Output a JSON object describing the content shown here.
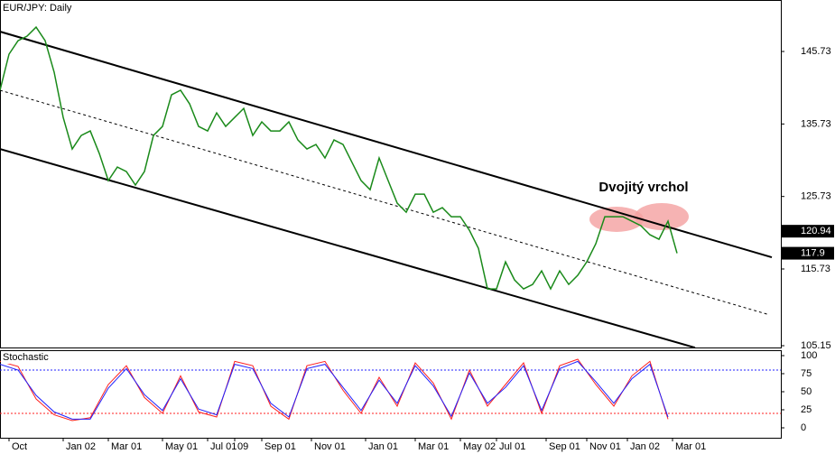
{
  "chart_data": [
    {
      "type": "line",
      "title": "EUR/JPY: Daily",
      "color": "#1a8a1a",
      "x": [
        0,
        2,
        4,
        6,
        8,
        10,
        12,
        14,
        16,
        18,
        20,
        22,
        24,
        26,
        28,
        30,
        32,
        34,
        36,
        38,
        40,
        42,
        44,
        46,
        48,
        50,
        52,
        54,
        56,
        58,
        60,
        62,
        64,
        66,
        68,
        70,
        72,
        74,
        76,
        78,
        80,
        82,
        84,
        86,
        88,
        90,
        92,
        94,
        96,
        98,
        100,
        102,
        104,
        106,
        108,
        110,
        112,
        114,
        116,
        118,
        120,
        122,
        124,
        126,
        128,
        130,
        132,
        134,
        136,
        138,
        140,
        142,
        144,
        146,
        148,
        150
      ],
      "values": [
        140.38,
        145.36,
        147.22,
        147.85,
        149.09,
        147.22,
        142.87,
        136.64,
        132.28,
        134.15,
        134.77,
        131.66,
        127.92,
        129.79,
        129.17,
        127.3,
        129.17,
        134.15,
        135.39,
        139.75,
        140.38,
        138.51,
        135.39,
        134.77,
        137.26,
        135.39,
        136.64,
        137.88,
        134.15,
        136.02,
        134.77,
        134.77,
        136.02,
        133.53,
        132.28,
        132.9,
        131.04,
        133.53,
        132.9,
        130.41,
        127.92,
        126.67,
        131.04,
        127.92,
        124.81,
        123.56,
        126.05,
        126.05,
        123.56,
        124.19,
        122.94,
        122.94,
        121.07,
        118.58,
        112.98,
        112.98,
        116.71,
        114.22,
        112.98,
        113.6,
        115.47,
        112.98,
        115.47,
        113.6,
        114.85,
        116.71,
        119.2,
        122.94,
        122.94,
        122.94,
        122.32,
        121.69,
        120.45,
        119.83,
        122.32,
        117.9
      ],
      "xlim": [
        0,
        173
      ],
      "xticks": [
        {
          "value": 2,
          "label": "Oct"
        },
        {
          "value": 14,
          "label": "Jan 02"
        },
        {
          "value": 24,
          "label": "Mar 01"
        },
        {
          "value": 36,
          "label": "May 01"
        },
        {
          "value": 46,
          "label": "Jul 01"
        },
        {
          "value": 52,
          "label": "09"
        },
        {
          "value": 58,
          "label": "Sep 01"
        },
        {
          "value": 69,
          "label": "Nov 01"
        },
        {
          "value": 81,
          "label": "Jan 01"
        },
        {
          "value": 92,
          "label": "Mar 01"
        },
        {
          "value": 102,
          "label": "May 02"
        },
        {
          "value": 110,
          "label": "Jul 01"
        },
        {
          "value": 121,
          "label": "Sep 01"
        },
        {
          "value": 130,
          "label": "Nov 01"
        },
        {
          "value": 139,
          "label": "Jan 02"
        },
        {
          "value": 149,
          "label": "Mar 01"
        }
      ],
      "ylim": [
        104.9,
        152.83
      ],
      "yticks": [
        145.73,
        135.73,
        125.73,
        115.73,
        105.15
      ],
      "price_labels": [
        120.94,
        117.9
      ],
      "trendlines": [
        {
          "x": [
            0,
            171
          ],
          "values": [
            148.47,
            117.34
          ],
          "style": "solid"
        },
        {
          "x": [
            0,
            170
          ],
          "values": [
            140.38,
            109.49
          ],
          "style": "dotted"
        },
        {
          "x": [
            0,
            154
          ],
          "values": [
            132.28,
            104.88
          ],
          "style": "solid"
        }
      ],
      "annotation": "Dvojitý vrchol"
    },
    {
      "type": "line",
      "title": "Stochastic",
      "x": [
        0,
        4,
        8,
        12,
        16,
        20,
        24,
        28,
        32,
        36,
        40,
        44,
        48,
        52,
        56,
        60,
        64,
        68,
        72,
        76,
        80,
        84,
        88,
        92,
        96,
        100,
        104,
        108,
        112,
        116,
        120,
        124,
        128,
        132,
        136,
        140,
        144,
        148
      ],
      "series": [
        {
          "color": "#ff2020",
          "values": [
            92,
            85,
            40,
            18,
            10,
            14,
            60,
            86,
            42,
            20,
            72,
            22,
            15,
            92,
            86,
            30,
            12,
            86,
            92,
            52,
            20,
            70,
            30,
            90,
            62,
            12,
            80,
            30,
            60,
            90,
            20,
            86,
            95,
            60,
            30,
            72,
            92,
            12
          ]
        },
        {
          "color": "#2020ff",
          "values": [
            88,
            80,
            45,
            22,
            12,
            12,
            55,
            82,
            46,
            24,
            68,
            26,
            18,
            88,
            82,
            34,
            15,
            82,
            88,
            56,
            24,
            66,
            34,
            86,
            58,
            16,
            76,
            34,
            56,
            86,
            24,
            82,
            92,
            64,
            34,
            68,
            88,
            15
          ]
        }
      ],
      "xlim": [
        0,
        173
      ],
      "ylim": [
        -13.75,
        107.5
      ],
      "yticks": [
        100,
        75,
        50,
        25,
        0
      ],
      "levels": [
        {
          "value": 80,
          "color": "#2020ff"
        },
        {
          "value": 20,
          "color": "#ff2020"
        }
      ]
    }
  ]
}
